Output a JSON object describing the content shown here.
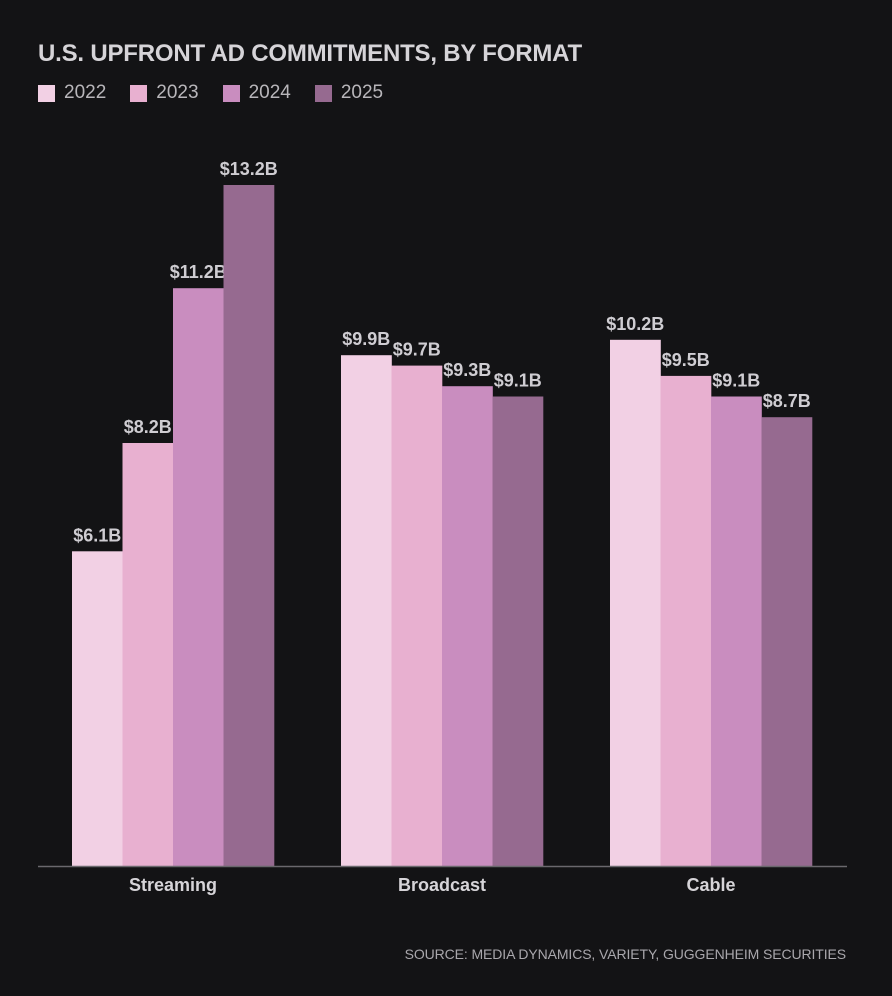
{
  "source_note": "SOURCE: MEDIA DYNAMICS, VARIETY, GUGGENHEIM SECURITIES",
  "chart_data": {
    "type": "bar",
    "title": "U.S. UPFRONT AD COMMITMENTS, BY FORMAT",
    "categories": [
      "Streaming",
      "Broadcast",
      "Cable"
    ],
    "series": [
      {
        "name": "2022",
        "color": "#f2d0e4",
        "values": [
          6.1,
          9.9,
          10.2
        ],
        "labels": [
          "$6.1B",
          "$9.9B",
          "$10.2B"
        ]
      },
      {
        "name": "2023",
        "color": "#e8b0d0",
        "values": [
          8.2,
          9.7,
          9.5
        ],
        "labels": [
          "$8.2B",
          "$9.7B",
          "$9.5B"
        ]
      },
      {
        "name": "2024",
        "color": "#c98dbf",
        "values": [
          11.2,
          9.3,
          9.1
        ],
        "labels": [
          "$11.2B",
          "$9.3B",
          "$9.1B"
        ]
      },
      {
        "name": "2025",
        "color": "#966a90",
        "values": [
          13.2,
          9.1,
          8.7
        ],
        "labels": [
          "$13.2B",
          "$9.1B",
          "$8.7B"
        ]
      }
    ],
    "xlabel": "",
    "ylabel": "",
    "ylim": [
      0,
      13.2
    ],
    "grid": false,
    "legend_position": "top-left"
  }
}
